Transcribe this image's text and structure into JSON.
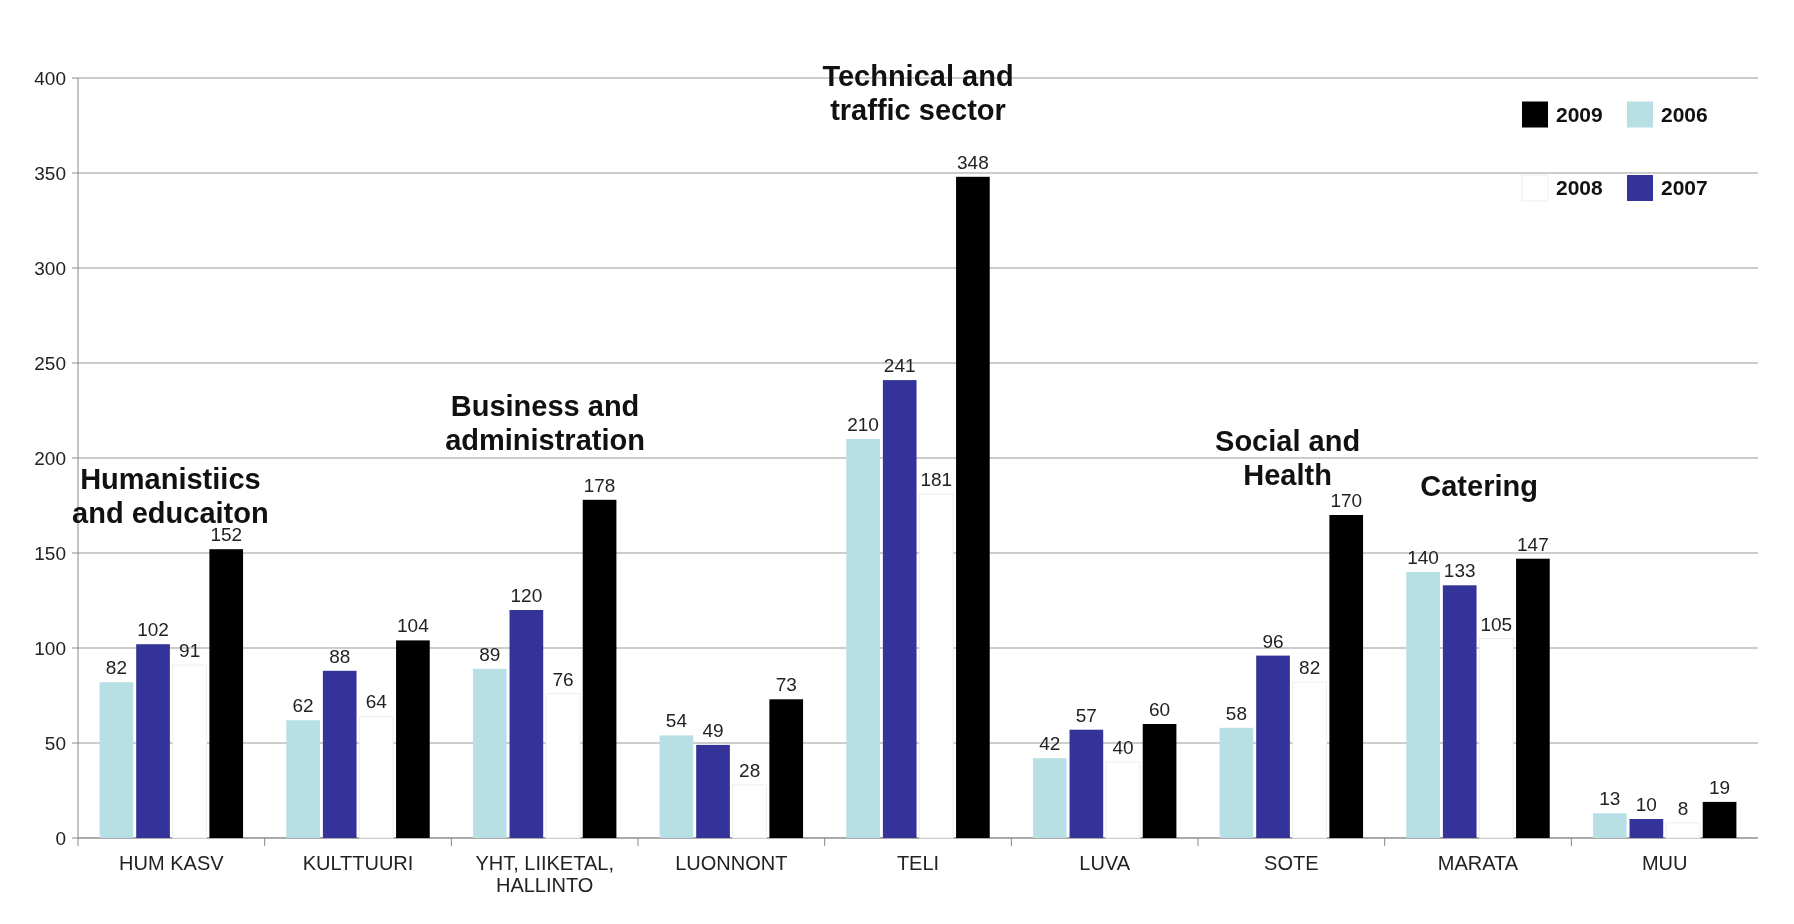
{
  "chart_data": {
    "type": "bar",
    "categories": [
      "HUM KASV",
      "KULTTUURI",
      "YHT, LIIKETAL, HALLINTO",
      "LUONNONT",
      "TELI",
      "LUVA",
      "SOTE",
      "MARATA",
      "MUU"
    ],
    "series": [
      {
        "name": "2006",
        "color": "#b7e0e4",
        "values": [
          82,
          62,
          89,
          54,
          210,
          42,
          58,
          140,
          13
        ]
      },
      {
        "name": "2007",
        "color": "#333399",
        "values": [
          102,
          88,
          120,
          49,
          241,
          57,
          96,
          133,
          10
        ]
      },
      {
        "name": "2008",
        "color": "#ffffff",
        "values": [
          91,
          64,
          76,
          28,
          181,
          40,
          82,
          105,
          8
        ]
      },
      {
        "name": "2009",
        "color": "#000000",
        "values": [
          152,
          104,
          178,
          73,
          348,
          60,
          170,
          147,
          19
        ]
      }
    ],
    "ylim": [
      0,
      400
    ],
    "yticks": [
      0,
      50,
      100,
      150,
      200,
      250,
      300,
      350,
      400
    ],
    "grid": "y",
    "legend": "top right",
    "data_labels": true,
    "annotations": [
      "Humanistiics\nand educaiton",
      "Business and\nadministration",
      "Technical and\ntraffic sector",
      "Social and\nHealth",
      "Catering"
    ]
  }
}
